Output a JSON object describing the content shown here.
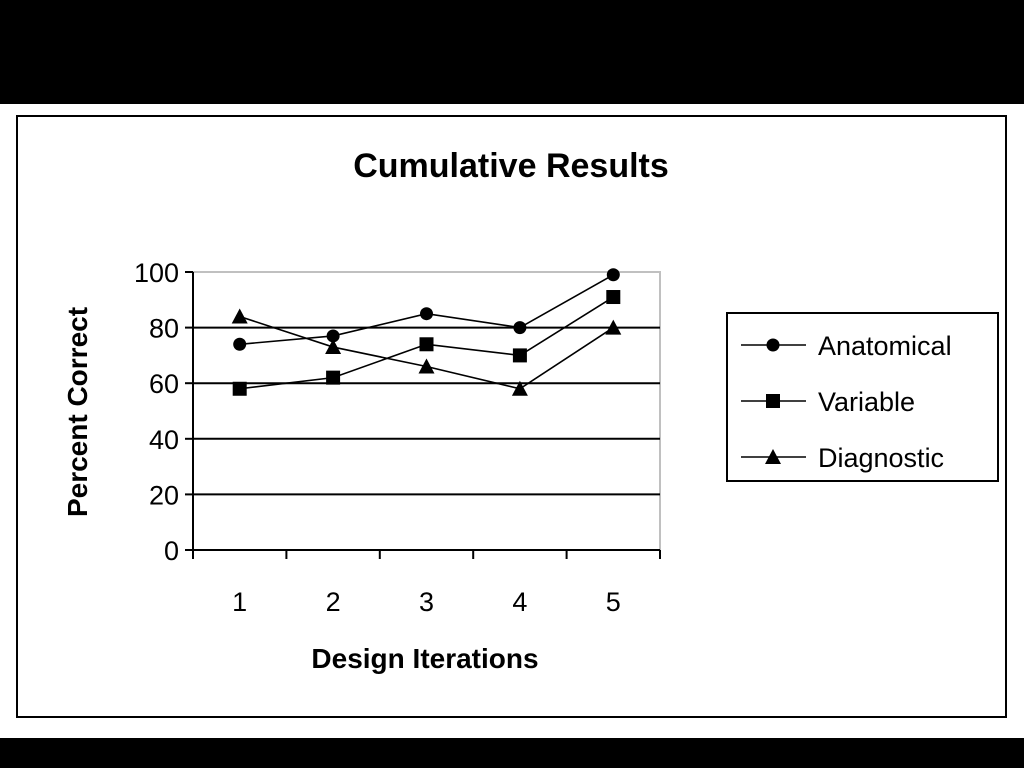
{
  "chart_data": {
    "type": "line",
    "title": "Cumulative Results",
    "xlabel": "Design Iterations",
    "ylabel": "Percent Correct",
    "categories": [
      "1",
      "2",
      "3",
      "4",
      "5"
    ],
    "ylim": [
      0,
      100
    ],
    "yticks": [
      "0",
      "20",
      "40",
      "60",
      "80",
      "100"
    ],
    "grid": "horizontal",
    "legend": "right",
    "series": [
      {
        "name": "Anatomical",
        "marker": "diamond",
        "values": [
          74,
          77,
          85,
          80,
          99
        ]
      },
      {
        "name": "Variable",
        "marker": "square",
        "values": [
          58,
          62,
          74,
          70,
          91
        ]
      },
      {
        "name": "Diagnostic",
        "marker": "triangle",
        "values": [
          84,
          73,
          66,
          58,
          80
        ]
      }
    ],
    "colors": {
      "line": "#000000",
      "background": "#ffffff",
      "frame": "#000000"
    }
  }
}
